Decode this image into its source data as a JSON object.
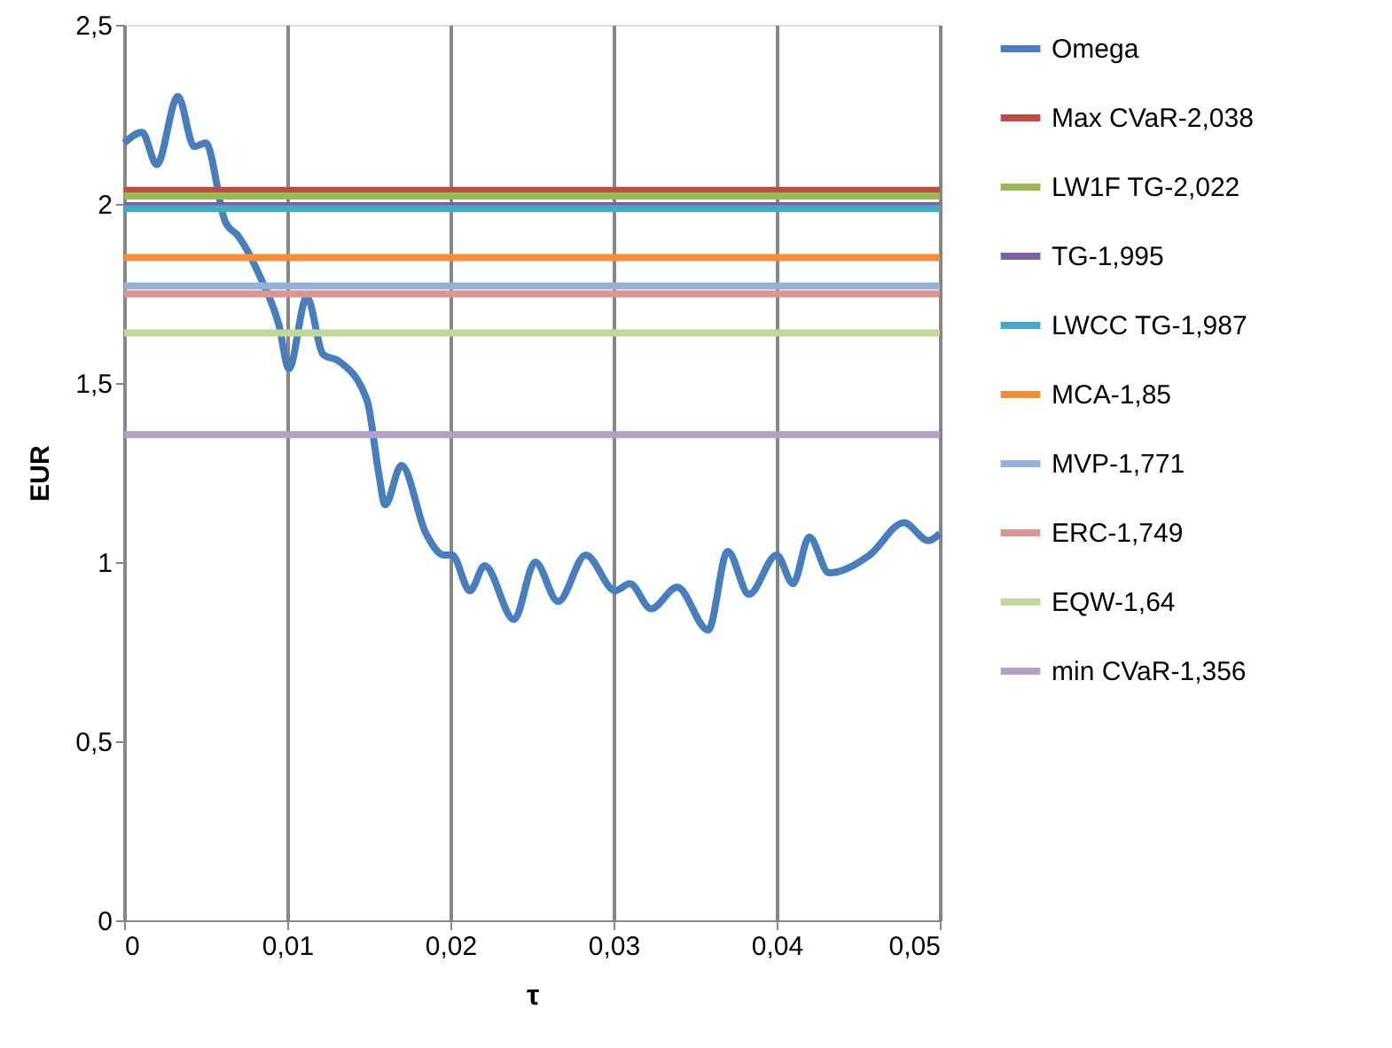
{
  "chart_data": {
    "type": "line",
    "xlabel": "τ",
    "ylabel": "EUR",
    "xlim": [
      0,
      0.05
    ],
    "xticks": [
      {
        "value": 0,
        "label": "0"
      },
      {
        "value": 0.01,
        "label": "0,01"
      },
      {
        "value": 0.02,
        "label": "0,02"
      },
      {
        "value": 0.03,
        "label": "0,03"
      },
      {
        "value": 0.04,
        "label": "0,04"
      },
      {
        "value": 0.05,
        "label": "0,05"
      }
    ],
    "ylim": [
      0,
      2.5
    ],
    "yticks": [
      0,
      {
        "value": 0.5,
        "label": "0,5"
      },
      1,
      {
        "value": 1.5,
        "label": "1,5"
      },
      2,
      {
        "value": 2.5,
        "label": "2,5"
      }
    ],
    "grid": "x",
    "legend": "right",
    "line_style": "solid",
    "marker": "none",
    "series": [
      {
        "name": "Omega",
        "color": "#4a7ebb",
        "x": [
          0,
          0.0011,
          0.002,
          0.0033,
          0.0043,
          0.005,
          0.0062,
          0.007,
          0.0084,
          0.0095,
          0.0101,
          0.0112,
          0.0122,
          0.0132,
          0.0149,
          0.0156,
          0.016,
          0.017,
          0.0185,
          0.0196,
          0.0201,
          0.0212,
          0.0221,
          0.0239,
          0.0252,
          0.0266,
          0.0283,
          0.0301,
          0.031,
          0.0323,
          0.0339,
          0.0358,
          0.037,
          0.0383,
          0.04,
          0.041,
          0.042,
          0.0432,
          0.0457,
          0.0478,
          0.0493,
          0.05
        ],
        "values": [
          2.17,
          2.2,
          2.11,
          2.3,
          2.16,
          2.17,
          1.95,
          1.91,
          1.79,
          1.66,
          1.54,
          1.74,
          1.58,
          1.56,
          1.45,
          1.25,
          1.16,
          1.27,
          1.08,
          1.02,
          1.02,
          0.92,
          0.99,
          0.84,
          1.0,
          0.89,
          1.02,
          0.92,
          0.94,
          0.87,
          0.93,
          0.81,
          1.03,
          0.91,
          1.02,
          0.94,
          1.07,
          0.97,
          1.02,
          1.11,
          1.06,
          1.08
        ]
      },
      {
        "name": "Max CVaR-2,038",
        "color": "#be4b48",
        "x": [
          0,
          0.05
        ],
        "values": [
          2.038,
          2.038
        ]
      },
      {
        "name": "LW1F TG-2,022",
        "color": "#98b954",
        "x": [
          0,
          0.05
        ],
        "values": [
          2.022,
          2.022
        ]
      },
      {
        "name": "TG-1,995",
        "color": "#7d60a0",
        "x": [
          0,
          0.05
        ],
        "values": [
          1.995,
          1.995
        ]
      },
      {
        "name": "LWCC TG-1,987",
        "color": "#46aac5",
        "x": [
          0,
          0.05
        ],
        "values": [
          1.987,
          1.987
        ]
      },
      {
        "name": "MCA-1,85",
        "color": "#f38d3a",
        "x": [
          0,
          0.05
        ],
        "values": [
          1.85,
          1.85
        ]
      },
      {
        "name": "MVP-1,771",
        "color": "#95b3d7",
        "x": [
          0,
          0.05
        ],
        "values": [
          1.771,
          1.771
        ]
      },
      {
        "name": "ERC-1,749",
        "color": "#d99694",
        "x": [
          0,
          0.05
        ],
        "values": [
          1.749,
          1.749
        ]
      },
      {
        "name": "EQW-1,64",
        "color": "#c3d69b",
        "x": [
          0,
          0.05
        ],
        "values": [
          1.64,
          1.64
        ]
      },
      {
        "name": "min CVaR-1,356",
        "color": "#b3a2c7",
        "x": [
          0,
          0.05
        ],
        "values": [
          1.356,
          1.356
        ]
      }
    ]
  }
}
